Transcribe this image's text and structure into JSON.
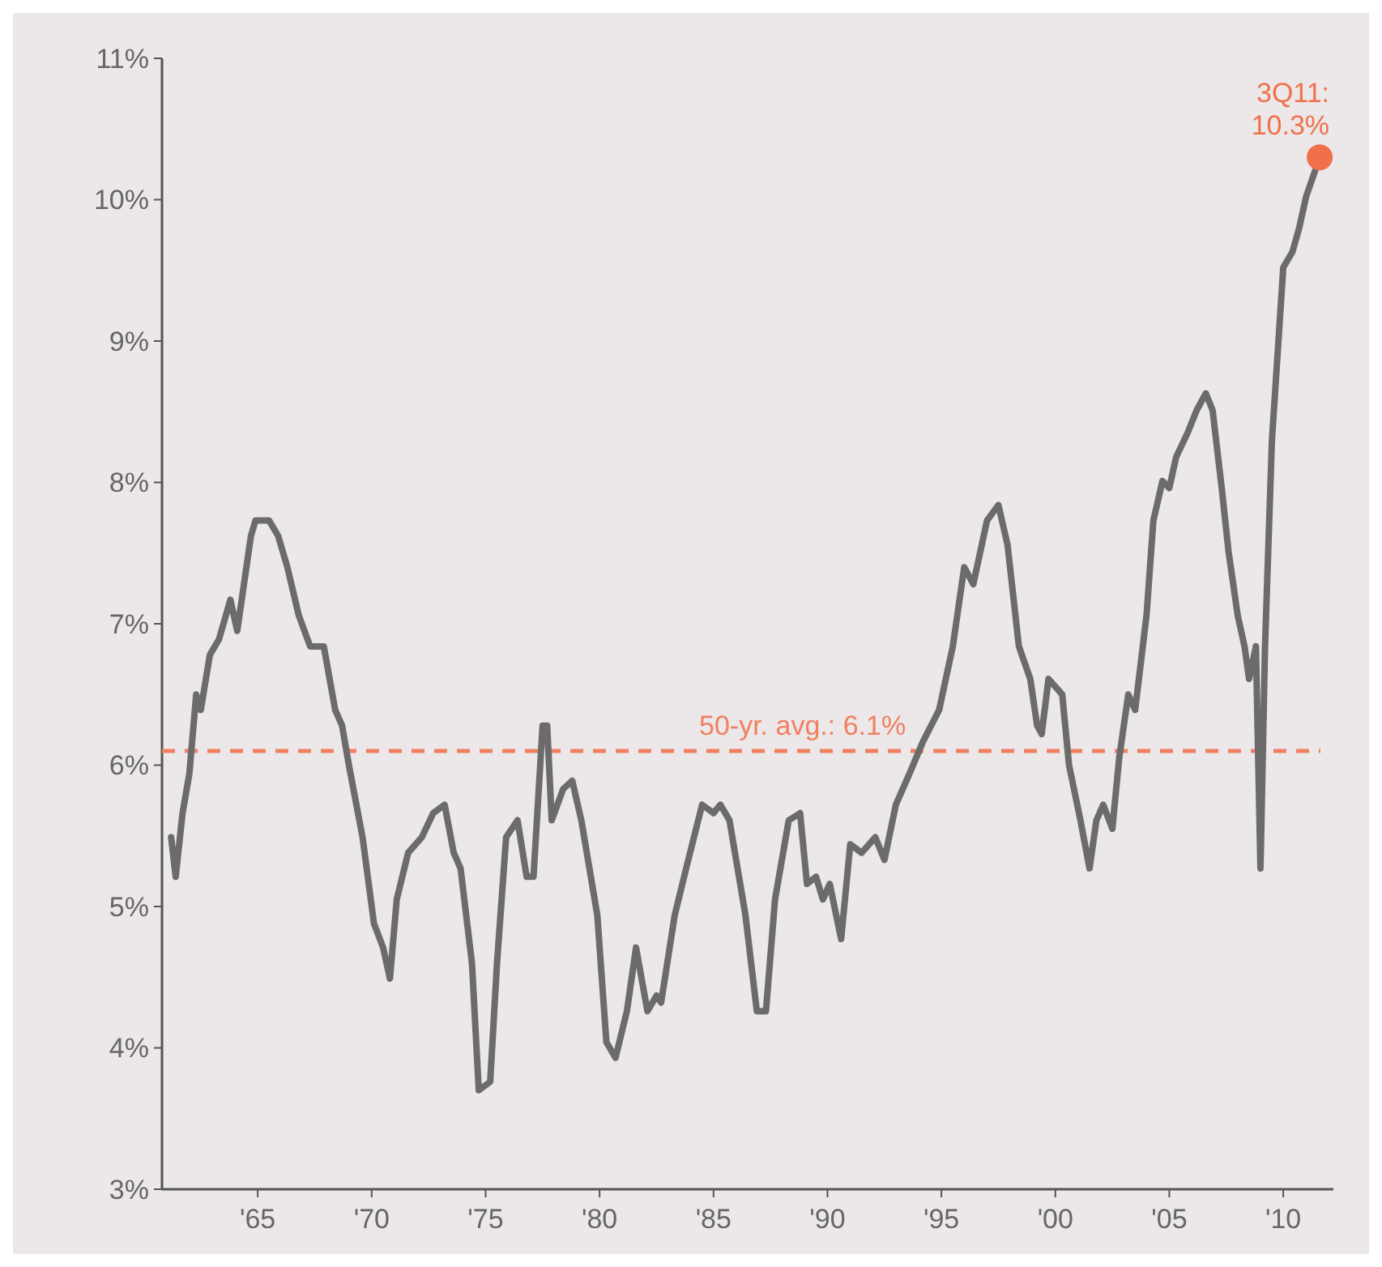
{
  "chart_data": {
    "type": "line",
    "xlim": [
      1960.8,
      2012.2
    ],
    "ylim": [
      3,
      11
    ],
    "xticks": [
      {
        "value": 1965,
        "label": "'65"
      },
      {
        "value": 1970,
        "label": "'70"
      },
      {
        "value": 1975,
        "label": "'75"
      },
      {
        "value": 1980,
        "label": "'80"
      },
      {
        "value": 1985,
        "label": "'85"
      },
      {
        "value": 1990,
        "label": "'90"
      },
      {
        "value": 1995,
        "label": "'95"
      },
      {
        "value": 2000,
        "label": "'00"
      },
      {
        "value": 2005,
        "label": "'05"
      },
      {
        "value": 2010,
        "label": "'10"
      }
    ],
    "yticks": [
      {
        "value": 3,
        "label": "3%"
      },
      {
        "value": 4,
        "label": "4%"
      },
      {
        "value": 5,
        "label": "5%"
      },
      {
        "value": 6,
        "label": "6%"
      },
      {
        "value": 7,
        "label": "7%"
      },
      {
        "value": 8,
        "label": "8%"
      },
      {
        "value": 9,
        "label": "9%"
      },
      {
        "value": 10,
        "label": "10%"
      },
      {
        "value": 11,
        "label": "11%"
      }
    ],
    "grid": false,
    "line_style": "solid",
    "marker": "none",
    "series": [
      {
        "color": "#6b6b6b",
        "x": [
          1961.2,
          1961.4,
          1961.7,
          1962.0,
          1962.3,
          1962.5,
          1962.9,
          1963.3,
          1963.8,
          1964.1,
          1964.7,
          1964.9,
          1965.5,
          1965.9,
          1966.3,
          1966.8,
          1967.3,
          1967.9,
          1968.4,
          1968.7,
          1969.0,
          1969.6,
          1970.1,
          1970.5,
          1970.8,
          1971.1,
          1971.6,
          1972.2,
          1972.7,
          1973.2,
          1973.6,
          1973.9,
          1974.4,
          1974.7,
          1975.2,
          1975.5,
          1975.9,
          1976.4,
          1976.8,
          1977.1,
          1977.5,
          1977.7,
          1977.9,
          1978.4,
          1978.8,
          1979.2,
          1979.9,
          1980.3,
          1980.7,
          1981.2,
          1981.6,
          1982.1,
          1982.5,
          1982.7,
          1983.3,
          1983.8,
          1984.5,
          1985.0,
          1985.3,
          1985.7,
          1986.4,
          1986.9,
          1987.3,
          1987.7,
          1988.3,
          1988.8,
          1989.1,
          1989.5,
          1989.8,
          1990.1,
          1990.6,
          1991.0,
          1991.5,
          1992.1,
          1992.5,
          1993.0,
          1993.6,
          1994.2,
          1994.9,
          1995.5,
          1996.0,
          1996.4,
          1997.0,
          1997.5,
          1997.9,
          1998.4,
          1998.9,
          1999.2,
          1999.4,
          1999.7,
          2000.3,
          2000.6,
          2001.1,
          2001.5,
          2001.8,
          2002.1,
          2002.5,
          2002.8,
          2003.2,
          2003.5,
          2004.0,
          2004.3,
          2004.7,
          2005.0,
          2005.3,
          2005.8,
          2006.2,
          2006.6,
          2006.9,
          2007.3,
          2007.6,
          2008.0,
          2008.3,
          2008.5,
          2008.8,
          2009.0,
          2009.2,
          2009.5,
          2010.0,
          2010.4,
          2010.7,
          2011.0,
          2011.6
        ],
        "values": [
          5.49,
          5.21,
          5.66,
          5.94,
          6.5,
          6.39,
          6.78,
          6.89,
          7.17,
          6.95,
          7.62,
          7.73,
          7.73,
          7.62,
          7.4,
          7.06,
          6.84,
          6.84,
          6.39,
          6.28,
          6.0,
          5.49,
          4.88,
          4.71,
          4.49,
          5.05,
          5.38,
          5.49,
          5.66,
          5.72,
          5.38,
          5.27,
          4.6,
          3.7,
          3.76,
          4.6,
          5.49,
          5.61,
          5.21,
          5.21,
          6.28,
          6.28,
          5.61,
          5.83,
          5.89,
          5.61,
          4.94,
          4.04,
          3.93,
          4.26,
          4.71,
          4.26,
          4.37,
          4.32,
          4.94,
          5.27,
          5.72,
          5.66,
          5.72,
          5.61,
          4.94,
          4.26,
          4.26,
          5.05,
          5.61,
          5.66,
          5.16,
          5.21,
          5.05,
          5.16,
          4.77,
          5.44,
          5.38,
          5.49,
          5.33,
          5.72,
          5.94,
          6.17,
          6.39,
          6.84,
          7.4,
          7.28,
          7.73,
          7.84,
          7.56,
          6.84,
          6.61,
          6.28,
          6.22,
          6.61,
          6.5,
          6.0,
          5.61,
          5.27,
          5.61,
          5.72,
          5.55,
          6.05,
          6.5,
          6.39,
          7.06,
          7.73,
          8.01,
          7.96,
          8.18,
          8.35,
          8.51,
          8.63,
          8.51,
          7.96,
          7.51,
          7.06,
          6.84,
          6.61,
          6.84,
          5.27,
          6.84,
          8.29,
          9.52,
          9.63,
          9.8,
          10.02,
          10.3
        ]
      },
      {
        "type": "scatter",
        "marker": "circle",
        "color": "#f0704a",
        "x": [
          2011.6
        ],
        "values": [
          10.3
        ]
      }
    ],
    "ref_lines": [
      {
        "axis": "y",
        "value": 6.1,
        "label": "50-yr. avg.: 6.1%",
        "color": "#f08060",
        "line_style": "dashed"
      }
    ],
    "annotations": [
      {
        "text": "3Q11:\n10.3%",
        "x": 2011.6,
        "y": 10.3
      }
    ]
  }
}
